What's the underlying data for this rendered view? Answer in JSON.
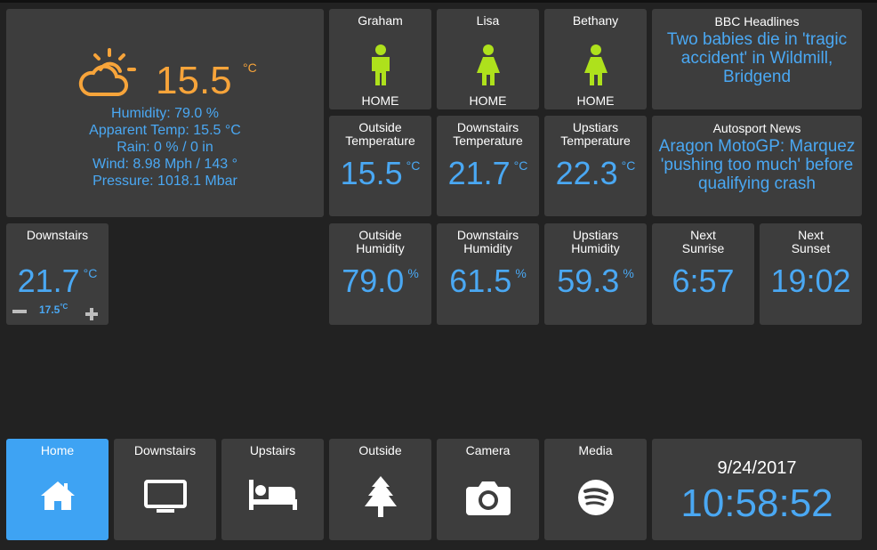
{
  "weather": {
    "temp": "15.5",
    "unit": "°C",
    "humidity": "Humidity:  79.0 %",
    "apparent": "Apparent Temp:  15.5 °C",
    "rain": "Rain:  0  %  /  0 in",
    "wind": "Wind:  8.98  Mph  /  143  °",
    "pressure": "Pressure:  1018.1  Mbar",
    "icon": "partly-cloudy-day-icon"
  },
  "people": [
    {
      "name": "Graham",
      "status": "HOME",
      "icon": "male-person-icon"
    },
    {
      "name": "Lisa",
      "status": "HOME",
      "icon": "female-person-icon"
    },
    {
      "name": "Bethany",
      "status": "HOME",
      "icon": "female-person-icon"
    }
  ],
  "news": [
    {
      "title": "BBC Headlines",
      "text": "Two babies die in 'tragic accident' in Wildmill, Bridgend"
    },
    {
      "title": "Autosport News",
      "text": "Aragon MotoGP: Marquez 'pushing too much' before qualifying crash"
    }
  ],
  "temperatures": [
    {
      "title_1": "Outside",
      "title_2": "Temperature",
      "value": "15.5",
      "unit": "°C"
    },
    {
      "title_1": "Downstairs",
      "title_2": "Temperature",
      "value": "21.7",
      "unit": "°C"
    },
    {
      "title_1": "Upstiars",
      "title_2": "Temperature",
      "value": "22.3",
      "unit": "°C"
    }
  ],
  "humidity": [
    {
      "title_1": "Outside",
      "title_2": "Humidity",
      "value": "79.0",
      "unit": "%"
    },
    {
      "title_1": "Downstairs",
      "title_2": "Humidity",
      "value": "61.5",
      "unit": "%"
    },
    {
      "title_1": "Upstiars",
      "title_2": "Humidity",
      "value": "59.3",
      "unit": "%"
    }
  ],
  "sun": [
    {
      "title_1": "Next",
      "title_2": "Sunrise",
      "value": "6:57"
    },
    {
      "title_1": "Next",
      "title_2": "Sunset",
      "value": "19:02"
    }
  ],
  "thermostat": {
    "title": "Downstairs",
    "value": "21.7",
    "unit": "°C",
    "setpoint": "17.5",
    "setpoint_unit": "°C"
  },
  "nav": [
    {
      "label": "Home",
      "icon": "home-icon",
      "active": true
    },
    {
      "label": "Downstairs",
      "icon": "monitor-icon",
      "active": false
    },
    {
      "label": "Upstairs",
      "icon": "bed-icon",
      "active": false
    },
    {
      "label": "Outside",
      "icon": "tree-icon",
      "active": false
    },
    {
      "label": "Camera",
      "icon": "camera-icon",
      "active": false
    },
    {
      "label": "Media",
      "icon": "spotify-icon",
      "active": false
    }
  ],
  "clock": {
    "date": "9/24/2017",
    "time": "10:58:52"
  },
  "colors": {
    "accent": "#4aa8f3",
    "weather": "#f7a43a",
    "person": "#aee11c",
    "tile": "#3d3d3d",
    "background": "#222222",
    "active_nav": "#3ea3f3"
  }
}
